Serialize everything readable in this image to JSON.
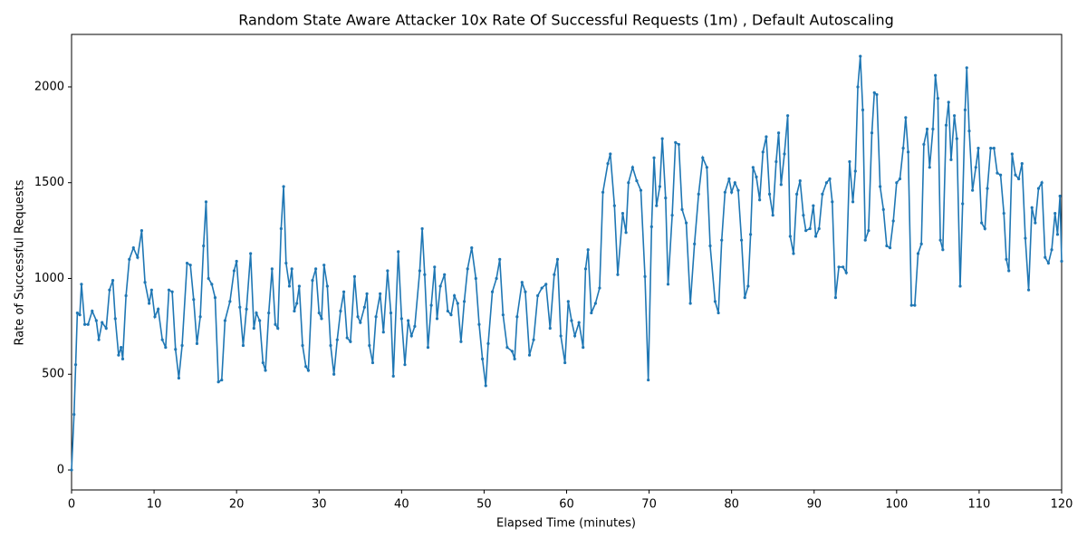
{
  "chart_data": {
    "type": "line",
    "title": "Random State Aware Attacker 10x Rate Of Successful Requests (1m) , Default Autoscaling",
    "x_label": "Elapsed Time (minutes)",
    "y_label": "Rate of Successful Requests",
    "xlim": [
      0,
      120
    ],
    "ylim": [
      -104,
      2274
    ],
    "xticks": [
      0,
      10,
      20,
      30,
      40,
      50,
      60,
      70,
      80,
      90,
      100,
      110,
      120
    ],
    "yticks": [
      0,
      500,
      1000,
      1500,
      2000
    ],
    "x": [
      0,
      0.3,
      0.5,
      0.7,
      1.0,
      1.2,
      1.6,
      2.0,
      2.5,
      3.0,
      3.3,
      3.7,
      4.2,
      4.6,
      5.0,
      5.3,
      5.7,
      6.0,
      6.2,
      6.6,
      7.0,
      7.5,
      8.0,
      8.5,
      8.9,
      9.4,
      9.7,
      10.1,
      10.5,
      11.0,
      11.4,
      11.8,
      12.2,
      12.6,
      13.0,
      13.4,
      14.0,
      14.4,
      14.8,
      15.2,
      15.6,
      16.0,
      16.3,
      16.6,
      17.0,
      17.4,
      17.8,
      18.2,
      18.6,
      19.2,
      19.7,
      20.0,
      20.4,
      20.8,
      21.2,
      21.7,
      22.1,
      22.4,
      22.8,
      23.2,
      23.5,
      23.9,
      24.3,
      24.7,
      25.0,
      25.4,
      25.7,
      26.0,
      26.4,
      26.7,
      27.0,
      27.3,
      27.6,
      28.0,
      28.4,
      28.7,
      29.2,
      29.6,
      30.0,
      30.3,
      30.6,
      31.0,
      31.4,
      31.8,
      32.2,
      32.6,
      33.0,
      33.4,
      33.8,
      34.3,
      34.7,
      35.0,
      35.5,
      35.8,
      36.1,
      36.5,
      36.9,
      37.4,
      37.8,
      38.3,
      38.7,
      39.0,
      39.6,
      40.0,
      40.4,
      40.8,
      41.2,
      41.6,
      42.2,
      42.5,
      42.8,
      43.2,
      43.6,
      44.0,
      44.3,
      44.7,
      45.2,
      45.6,
      46.0,
      46.4,
      46.8,
      47.2,
      47.6,
      48.0,
      48.5,
      49.0,
      49.4,
      49.8,
      50.2,
      50.5,
      51.0,
      51.5,
      51.9,
      52.3,
      52.8,
      53.4,
      53.7,
      54.0,
      54.6,
      55.0,
      55.5,
      56.0,
      56.5,
      57.0,
      57.5,
      58.0,
      58.5,
      58.9,
      59.3,
      59.8,
      60.2,
      60.6,
      61.0,
      61.5,
      62.0,
      62.3,
      62.6,
      63.0,
      63.5,
      64.0,
      64.4,
      65.0,
      65.3,
      65.8,
      66.2,
      66.8,
      67.2,
      67.5,
      68.0,
      68.5,
      69.0,
      69.5,
      69.9,
      70.3,
      70.6,
      70.9,
      71.3,
      71.6,
      72.0,
      72.3,
      72.8,
      73.2,
      73.6,
      74.0,
      74.5,
      75.0,
      75.5,
      76.0,
      76.5,
      77.0,
      77.4,
      78.0,
      78.4,
      78.8,
      79.2,
      79.7,
      80.0,
      80.4,
      80.8,
      81.2,
      81.6,
      82.0,
      82.3,
      82.6,
      83.0,
      83.4,
      83.8,
      84.2,
      84.6,
      85.0,
      85.4,
      85.7,
      86.0,
      86.4,
      86.8,
      87.1,
      87.5,
      87.9,
      88.3,
      88.7,
      89.0,
      89.5,
      89.9,
      90.2,
      90.6,
      91.0,
      91.5,
      91.9,
      92.2,
      92.6,
      93.0,
      93.5,
      93.9,
      94.3,
      94.7,
      95.0,
      95.3,
      95.6,
      95.9,
      96.2,
      96.6,
      97.0,
      97.3,
      97.6,
      98.0,
      98.4,
      98.8,
      99.2,
      99.6,
      100.0,
      100.4,
      100.8,
      101.1,
      101.4,
      101.8,
      102.2,
      102.6,
      103.0,
      103.3,
      103.7,
      104.0,
      104.4,
      104.7,
      105.0,
      105.3,
      105.6,
      106.0,
      106.3,
      106.6,
      107.0,
      107.3,
      107.7,
      108.0,
      108.3,
      108.5,
      108.8,
      109.2,
      109.6,
      109.9,
      110.3,
      110.7,
      111.0,
      111.4,
      111.8,
      112.2,
      112.6,
      113.0,
      113.3,
      113.6,
      114.0,
      114.4,
      114.8,
      115.2,
      115.6,
      116.0,
      116.4,
      116.8,
      117.2,
      117.6,
      118.0,
      118.4,
      118.8,
      119.2,
      119.5,
      119.8,
      120.0
    ],
    "series": [
      {
        "color": "#1f77b4",
        "values": [
          0,
          290,
          550,
          820,
          810,
          970,
          760,
          760,
          830,
          780,
          680,
          770,
          740,
          940,
          990,
          790,
          600,
          640,
          580,
          910,
          1100,
          1160,
          1110,
          1250,
          980,
          870,
          940,
          800,
          840,
          680,
          640,
          940,
          930,
          630,
          480,
          650,
          1080,
          1070,
          890,
          660,
          800,
          1170,
          1400,
          1000,
          970,
          900,
          460,
          470,
          780,
          880,
          1040,
          1090,
          850,
          650,
          840,
          1130,
          740,
          820,
          780,
          560,
          520,
          820,
          1050,
          760,
          740,
          1260,
          1480,
          1080,
          960,
          1050,
          830,
          870,
          960,
          650,
          540,
          520,
          990,
          1050,
          820,
          790,
          1070,
          960,
          650,
          500,
          680,
          830,
          930,
          690,
          670,
          1010,
          800,
          770,
          850,
          920,
          650,
          560,
          800,
          920,
          720,
          1040,
          820,
          490,
          1140,
          790,
          550,
          780,
          700,
          750,
          1040,
          1260,
          1020,
          640,
          860,
          1060,
          790,
          960,
          1020,
          830,
          810,
          910,
          870,
          670,
          880,
          1050,
          1160,
          1000,
          760,
          580,
          440,
          660,
          930,
          1000,
          1100,
          810,
          640,
          620,
          580,
          800,
          980,
          930,
          600,
          680,
          910,
          950,
          970,
          740,
          1020,
          1100,
          700,
          560,
          880,
          780,
          700,
          770,
          640,
          1050,
          1150,
          820,
          870,
          950,
          1450,
          1600,
          1650,
          1380,
          1020,
          1340,
          1240,
          1500,
          1580,
          1510,
          1460,
          1010,
          470,
          1270,
          1630,
          1380,
          1480,
          1730,
          1420,
          970,
          1330,
          1710,
          1700,
          1360,
          1290,
          870,
          1180,
          1440,
          1630,
          1580,
          1170,
          880,
          820,
          1200,
          1450,
          1520,
          1450,
          1500,
          1460,
          1200,
          900,
          960,
          1230,
          1580,
          1530,
          1410,
          1660,
          1740,
          1440,
          1330,
          1610,
          1760,
          1490,
          1650,
          1850,
          1220,
          1130,
          1440,
          1510,
          1330,
          1250,
          1260,
          1380,
          1220,
          1260,
          1440,
          1500,
          1520,
          1400,
          900,
          1060,
          1060,
          1030,
          1610,
          1400,
          1560,
          2000,
          2160,
          1880,
          1200,
          1250,
          1760,
          1970,
          1960,
          1480,
          1360,
          1170,
          1160,
          1300,
          1500,
          1520,
          1680,
          1840,
          1660,
          860,
          860,
          1130,
          1180,
          1700,
          1780,
          1580,
          1780,
          2060,
          1940,
          1200,
          1150,
          1800,
          1920,
          1620,
          1850,
          1730,
          960,
          1390,
          1880,
          2100,
          1770,
          1460,
          1580,
          1680,
          1290,
          1260,
          1470,
          1680,
          1680,
          1550,
          1540,
          1340,
          1100,
          1040,
          1650,
          1540,
          1520,
          1600,
          1210,
          940,
          1370,
          1290,
          1470,
          1500,
          1110,
          1080,
          1150,
          1340,
          1230,
          1430,
          1090
        ]
      }
    ]
  }
}
